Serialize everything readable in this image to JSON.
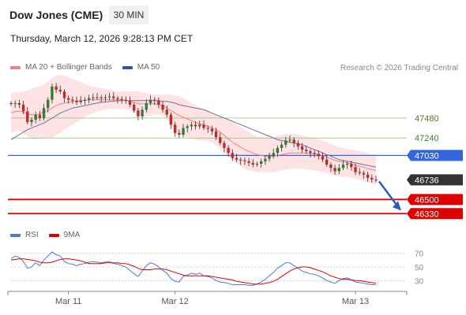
{
  "header": {
    "title": "Dow Jones (CME)",
    "interval": "30 MIN",
    "datetime": "Thursday, March 12, 2026 9:28:13 PM CET",
    "copyright": "Research © 2026 Trading Central"
  },
  "legend": {
    "price": [
      {
        "label": "MA 20 + Bollinger Bands",
        "color": "#f08080"
      },
      {
        "label": "MA 50",
        "color": "#30589a"
      }
    ],
    "rsi": [
      {
        "label": "RSI",
        "color": "#4a7cd6"
      },
      {
        "label": "9MA",
        "color": "#e00000"
      }
    ]
  },
  "colors": {
    "up": "#2e7d32",
    "down": "#c62828",
    "band_fill": "#fde3e3",
    "ma20": "#f08080",
    "ma50": "#7070a0",
    "resistance": "#8fc06a",
    "pivot": "#3366dd",
    "support": "#dd0000",
    "arrow": "#2a5fb0",
    "last_price_bg": "#333333"
  },
  "chart_data": {
    "type": "candlestick",
    "price_panel": {
      "ylim": [
        46200,
        48000
      ],
      "levels": [
        {
          "value": 47480,
          "label": "47480",
          "kind": "resistance"
        },
        {
          "value": 47240,
          "label": "47240",
          "kind": "resistance"
        },
        {
          "value": 47030,
          "label": "47030",
          "kind": "pivot"
        },
        {
          "value": 46736,
          "label": "46736",
          "kind": "last"
        },
        {
          "value": 46500,
          "label": "46500",
          "kind": "support"
        },
        {
          "value": 46330,
          "label": "46330",
          "kind": "support"
        }
      ],
      "close_series": [
        47650,
        47660,
        47640,
        47560,
        47430,
        47460,
        47520,
        47480,
        47600,
        47700,
        47860,
        47820,
        47800,
        47720,
        47700,
        47690,
        47670,
        47690,
        47700,
        47720,
        47730,
        47730,
        47720,
        47730,
        47740,
        47720,
        47710,
        47700,
        47690,
        47640,
        47570,
        47500,
        47580,
        47660,
        47700,
        47690,
        47640,
        47580,
        47520,
        47400,
        47300,
        47280,
        47360,
        47380,
        47400,
        47380,
        47400,
        47360,
        47350,
        47320,
        47250,
        47180,
        47120,
        47060,
        47000,
        46980,
        46970,
        46960,
        46940,
        46920,
        46930,
        46960,
        46990,
        47020,
        47060,
        47120,
        47160,
        47210,
        47220,
        47180,
        47140,
        47100,
        47080,
        47060,
        47050,
        47020,
        46980,
        46920,
        46880,
        46840,
        46880,
        46920,
        46930,
        46890,
        46830,
        46820,
        46800,
        46760,
        46740,
        46736
      ],
      "ma20": [
        47540,
        47560,
        47560,
        47550,
        47530,
        47520,
        47520,
        47530,
        47550,
        47570,
        47600,
        47630,
        47650,
        47660,
        47670,
        47680,
        47680,
        47690,
        47690,
        47700,
        47700,
        47700,
        47700,
        47700,
        47700,
        47700,
        47700,
        47700,
        47690,
        47680,
        47670,
        47650,
        47650,
        47650,
        47650,
        47650,
        47640,
        47630,
        47600,
        47570,
        47540,
        47510,
        47490,
        47470,
        47450,
        47430,
        47410,
        47400,
        47380,
        47360,
        47340,
        47310,
        47270,
        47230,
        47190,
        47160,
        47130,
        47100,
        47080,
        47060,
        47040,
        47030,
        47020,
        47020,
        47020,
        47030,
        47040,
        47050,
        47060,
        47060,
        47060,
        47060,
        47060,
        47050,
        47050,
        47040,
        47030,
        47010,
        46990,
        46970,
        46960,
        46950,
        46940,
        46930,
        46910,
        46900,
        46890,
        46870,
        46860,
        46850
      ],
      "bb_upper": [
        47780,
        47790,
        47790,
        47800,
        47810,
        47830,
        47850,
        47860,
        47880,
        47920,
        47960,
        47990,
        48000,
        47990,
        47970,
        47950,
        47930,
        47910,
        47890,
        47870,
        47860,
        47850,
        47840,
        47830,
        47820,
        47810,
        47800,
        47800,
        47800,
        47800,
        47800,
        47800,
        47790,
        47780,
        47770,
        47760,
        47760,
        47760,
        47760,
        47760,
        47750,
        47740,
        47720,
        47690,
        47660,
        47640,
        47610,
        47580,
        47560,
        47540,
        47520,
        47500,
        47470,
        47450,
        47420,
        47400,
        47370,
        47340,
        47310,
        47280,
        47260,
        47250,
        47250,
        47250,
        47260,
        47270,
        47280,
        47290,
        47290,
        47290,
        47280,
        47270,
        47260,
        47250,
        47240,
        47230,
        47210,
        47190,
        47170,
        47150,
        47130,
        47120,
        47110,
        47100,
        47090,
        47080,
        47070,
        47060,
        47040,
        47030
      ],
      "bb_lower": [
        47300,
        47320,
        47320,
        47300,
        47260,
        47230,
        47220,
        47230,
        47240,
        47240,
        47240,
        47270,
        47300,
        47340,
        47370,
        47400,
        47430,
        47460,
        47490,
        47520,
        47540,
        47560,
        47570,
        47580,
        47590,
        47590,
        47590,
        47590,
        47580,
        47570,
        47540,
        47510,
        47500,
        47500,
        47510,
        47520,
        47520,
        47510,
        47470,
        47400,
        47330,
        47280,
        47260,
        47250,
        47240,
        47220,
        47210,
        47210,
        47200,
        47180,
        47150,
        47110,
        47060,
        47010,
        46970,
        46930,
        46900,
        46870,
        46850,
        46840,
        46830,
        46830,
        46830,
        46830,
        46830,
        46840,
        46850,
        46860,
        46870,
        46870,
        46870,
        46870,
        46860,
        46860,
        46850,
        46840,
        46830,
        46820,
        46800,
        46790,
        46780,
        46770,
        46770,
        46760,
        46750,
        46740,
        46720,
        46700,
        46690,
        46680
      ],
      "ma50": [
        47220,
        47250,
        47280,
        47310,
        47340,
        47360,
        47380,
        47400,
        47420,
        47450,
        47480,
        47510,
        47540,
        47560,
        47580,
        47600,
        47610,
        47620,
        47630,
        47640,
        47650,
        47660,
        47670,
        47670,
        47680,
        47680,
        47690,
        47690,
        47690,
        47690,
        47690,
        47690,
        47690,
        47690,
        47690,
        47690,
        47690,
        47680,
        47680,
        47670,
        47660,
        47640,
        47630,
        47620,
        47610,
        47600,
        47590,
        47580,
        47560,
        47540,
        47520,
        47500,
        47480,
        47460,
        47440,
        47420,
        47400,
        47380,
        47360,
        47340,
        47320,
        47300,
        47280,
        47260,
        47240,
        47220,
        47210,
        47200,
        47190,
        47180,
        47170,
        47160,
        47140,
        47120,
        47100,
        47080,
        47060,
        47040,
        47020,
        47000,
        46980,
        46970,
        46960,
        46950,
        46940,
        46930,
        46920,
        46910,
        46900,
        46890
      ]
    },
    "rsi_panel": {
      "ylim": [
        20,
        80
      ],
      "ticks": [
        70,
        50,
        30
      ],
      "rsi": [
        62,
        66,
        64,
        58,
        48,
        50,
        56,
        52,
        60,
        66,
        72,
        68,
        66,
        58,
        55,
        54,
        52,
        54,
        55,
        57,
        58,
        57,
        56,
        57,
        58,
        55,
        54,
        52,
        50,
        45,
        40,
        36,
        44,
        52,
        56,
        54,
        50,
        45,
        41,
        33,
        29,
        28,
        36,
        38,
        41,
        39,
        41,
        37,
        36,
        34,
        30,
        28,
        27,
        26,
        24,
        24,
        24,
        24,
        23,
        23,
        25,
        28,
        32,
        37,
        42,
        48,
        52,
        56,
        56,
        52,
        48,
        44,
        42,
        40,
        39,
        37,
        34,
        30,
        28,
        26,
        30,
        33,
        34,
        31,
        28,
        27,
        26,
        25,
        24,
        24
      ],
      "ma9": [
        60,
        61,
        62,
        62,
        61,
        60,
        59,
        57,
        56,
        56,
        57,
        59,
        61,
        62,
        62,
        61,
        60,
        59,
        57,
        55,
        55,
        55,
        55,
        56,
        56,
        56,
        56,
        55,
        55,
        53,
        51,
        48,
        46,
        46,
        46,
        47,
        47,
        47,
        46,
        44,
        42,
        40,
        38,
        37,
        37,
        37,
        37,
        37,
        37,
        36,
        35,
        34,
        33,
        32,
        31,
        29,
        28,
        27,
        26,
        25,
        25,
        25,
        26,
        27,
        29,
        32,
        36,
        40,
        44,
        47,
        49,
        50,
        50,
        49,
        47,
        45,
        43,
        40,
        37,
        35,
        33,
        32,
        32,
        31,
        30,
        30,
        29,
        28,
        27,
        26
      ]
    },
    "x_ticks": [
      {
        "index": 14,
        "label": "Mar 11"
      },
      {
        "index": 40,
        "label": "Mar 12"
      },
      {
        "index": 84,
        "label": "Mar 13"
      }
    ],
    "projection": {
      "from_value": 46736,
      "to_value": 46330
    }
  }
}
